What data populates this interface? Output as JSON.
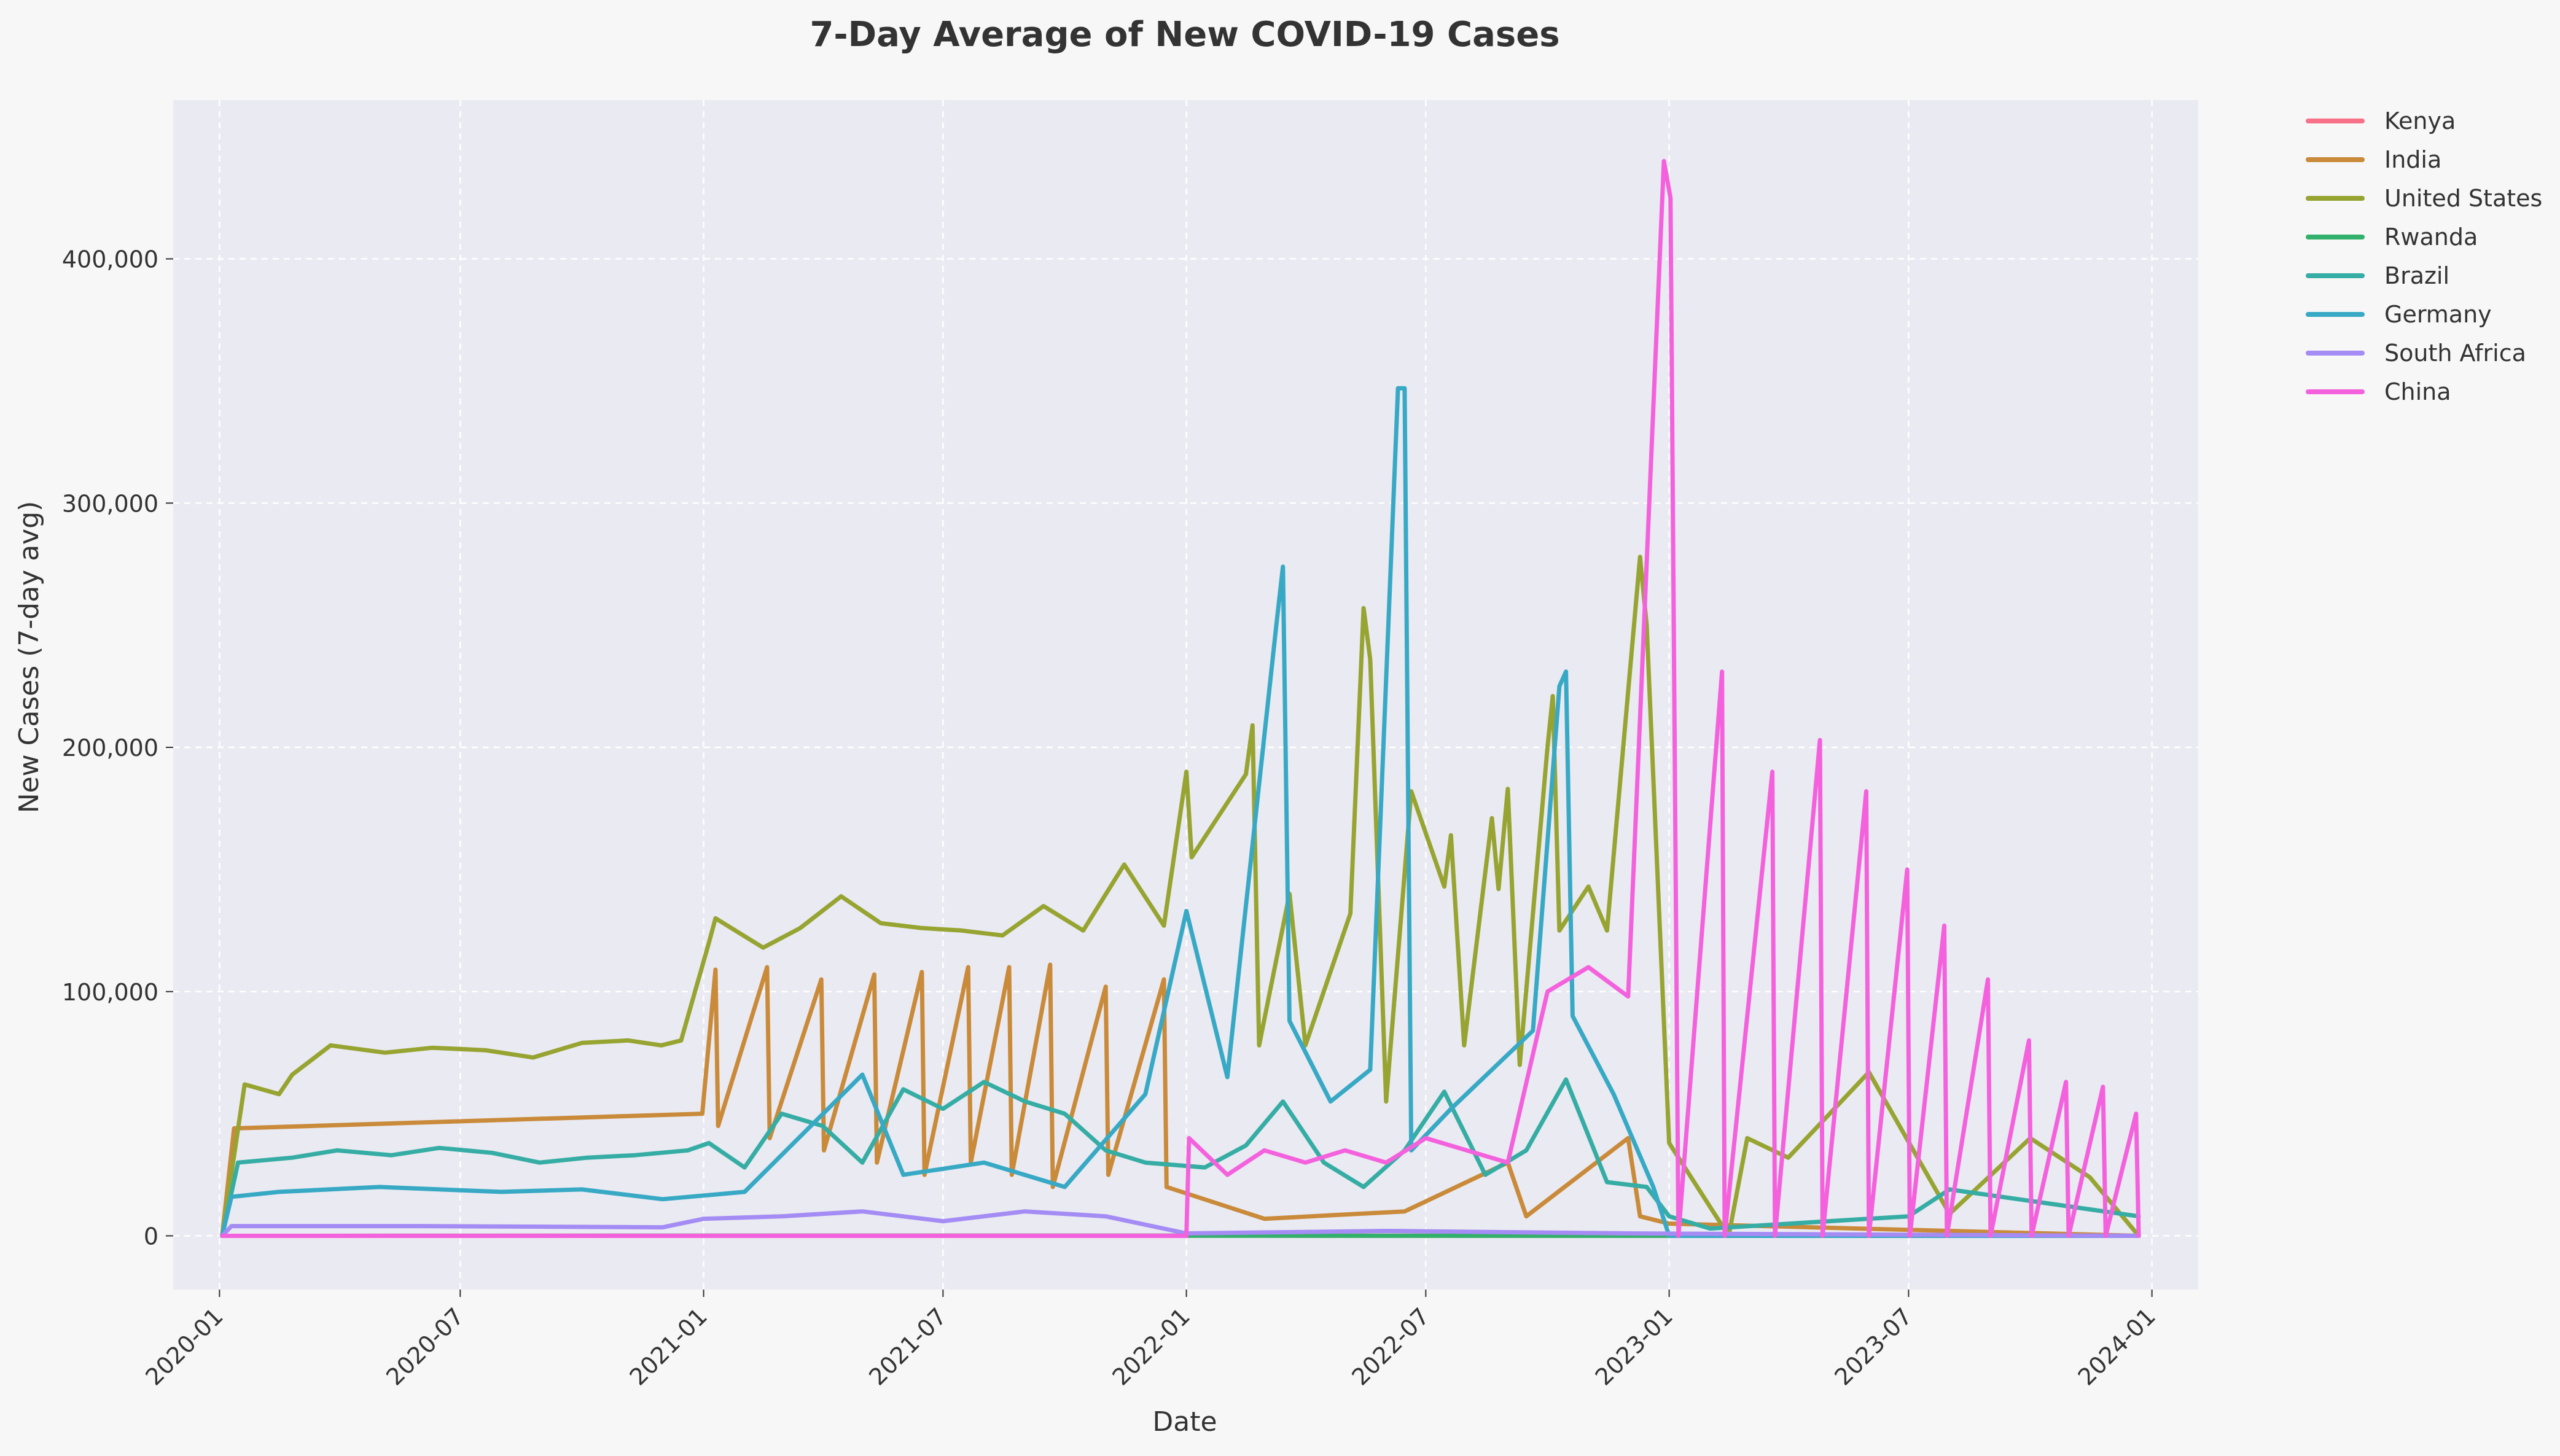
{
  "chart_data": {
    "type": "line",
    "title": "7-Day Average of New COVID-19 Cases",
    "xlabel": "Date",
    "ylabel": "New Cases (7-day avg)",
    "x_range": [
      "2019-11-27",
      "2024-02-05"
    ],
    "ylim": [
      -22000,
      465000
    ],
    "x_ticks": [
      "2020-01-01",
      "2020-07-01",
      "2021-01-01",
      "2021-07-01",
      "2022-01-01",
      "2022-07-01",
      "2023-01-01",
      "2023-07-01",
      "2024-01-01"
    ],
    "x_tick_labels": [
      "2020-01",
      "2020-07",
      "2021-01",
      "2021-07",
      "2022-01",
      "2022-07",
      "2023-01",
      "2023-07",
      "2024-01"
    ],
    "y_ticks": [
      0,
      100000,
      200000,
      300000,
      400000
    ],
    "y_tick_labels": [
      "0",
      "100,000",
      "200,000",
      "300,000",
      "400,000"
    ],
    "grid": true,
    "legend_position": "outside-top-right",
    "colors": {
      "background": "#f7f7f7",
      "plot_background": "#eaeaf2",
      "grid": "#ffffff"
    },
    "series": [
      {
        "name": "Kenya",
        "color": "#f77189",
        "points": [
          [
            "2020-01-03",
            0
          ],
          [
            "2021-06-01",
            100
          ],
          [
            "2022-06-01",
            80
          ],
          [
            "2023-12-22",
            0
          ]
        ]
      },
      {
        "name": "India",
        "color": "#c98a3a",
        "points": [
          [
            "2020-01-03",
            0
          ],
          [
            "2020-01-12",
            44000
          ],
          [
            "2020-12-31",
            50000
          ],
          [
            "2021-01-10",
            109000
          ],
          [
            "2021-01-12",
            45000
          ],
          [
            "2021-02-18",
            110000
          ],
          [
            "2021-02-20",
            40000
          ],
          [
            "2021-03-31",
            105000
          ],
          [
            "2021-04-02",
            35000
          ],
          [
            "2021-05-10",
            107000
          ],
          [
            "2021-05-12",
            30000
          ],
          [
            "2021-06-15",
            108000
          ],
          [
            "2021-06-17",
            25000
          ],
          [
            "2021-07-20",
            110000
          ],
          [
            "2021-07-22",
            30000
          ],
          [
            "2021-08-20",
            110000
          ],
          [
            "2021-08-22",
            25000
          ],
          [
            "2021-09-20",
            111000
          ],
          [
            "2021-09-22",
            20000
          ],
          [
            "2021-11-01",
            102000
          ],
          [
            "2021-11-03",
            25000
          ],
          [
            "2021-12-15",
            105000
          ],
          [
            "2021-12-17",
            20000
          ],
          [
            "2022-03-01",
            7000
          ],
          [
            "2022-06-15",
            10000
          ],
          [
            "2022-09-01",
            30000
          ],
          [
            "2022-09-15",
            8000
          ],
          [
            "2022-12-01",
            40000
          ],
          [
            "2022-12-10",
            8000
          ],
          [
            "2023-01-01",
            5000
          ],
          [
            "2023-12-22",
            0
          ]
        ]
      },
      {
        "name": "United States",
        "color": "#97a431",
        "points": [
          [
            "2020-01-03",
            0
          ],
          [
            "2020-01-20",
            62000
          ],
          [
            "2020-02-15",
            58000
          ],
          [
            "2020-02-25",
            66000
          ],
          [
            "2020-03-25",
            78000
          ],
          [
            "2020-05-05",
            75000
          ],
          [
            "2020-06-10",
            77000
          ],
          [
            "2020-07-20",
            76000
          ],
          [
            "2020-08-25",
            73000
          ],
          [
            "2020-10-01",
            79000
          ],
          [
            "2020-11-05",
            80000
          ],
          [
            "2020-11-30",
            78000
          ],
          [
            "2020-12-15",
            80000
          ],
          [
            "2021-01-05",
            120000
          ],
          [
            "2021-01-10",
            130000
          ],
          [
            "2021-02-15",
            118000
          ],
          [
            "2021-03-15",
            126000
          ],
          [
            "2021-04-15",
            139000
          ],
          [
            "2021-05-15",
            128000
          ],
          [
            "2021-06-15",
            126000
          ],
          [
            "2021-07-15",
            125000
          ],
          [
            "2021-08-15",
            123000
          ],
          [
            "2021-09-15",
            135000
          ],
          [
            "2021-10-15",
            125000
          ],
          [
            "2021-11-15",
            152000
          ],
          [
            "2021-12-15",
            127000
          ],
          [
            "2022-01-01",
            190000
          ],
          [
            "2022-01-05",
            155000
          ],
          [
            "2022-02-15",
            189000
          ],
          [
            "2022-02-20",
            209000
          ],
          [
            "2022-02-25",
            78000
          ],
          [
            "2022-03-20",
            140000
          ],
          [
            "2022-04-01",
            78000
          ],
          [
            "2022-05-05",
            132000
          ],
          [
            "2022-05-15",
            257000
          ],
          [
            "2022-05-20",
            236000
          ],
          [
            "2022-06-01",
            55000
          ],
          [
            "2022-06-20",
            182000
          ],
          [
            "2022-07-15",
            143000
          ],
          [
            "2022-07-20",
            164000
          ],
          [
            "2022-07-30",
            78000
          ],
          [
            "2022-08-20",
            171000
          ],
          [
            "2022-08-25",
            142000
          ],
          [
            "2022-09-01",
            183000
          ],
          [
            "2022-09-10",
            70000
          ],
          [
            "2022-10-01",
            200000
          ],
          [
            "2022-10-05",
            221000
          ],
          [
            "2022-10-10",
            125000
          ],
          [
            "2022-11-01",
            143000
          ],
          [
            "2022-11-15",
            125000
          ],
          [
            "2022-12-10",
            278000
          ],
          [
            "2022-12-15",
            250000
          ],
          [
            "2023-01-01",
            38000
          ],
          [
            "2023-02-15",
            0
          ],
          [
            "2023-03-01",
            40000
          ],
          [
            "2023-04-01",
            32000
          ],
          [
            "2023-06-01",
            67000
          ],
          [
            "2023-08-01",
            9000
          ],
          [
            "2023-10-01",
            40000
          ],
          [
            "2023-11-15",
            24000
          ],
          [
            "2023-12-22",
            0
          ]
        ]
      },
      {
        "name": "Rwanda",
        "color": "#33b06b",
        "points": [
          [
            "2020-01-03",
            0
          ],
          [
            "2021-03-01",
            80
          ],
          [
            "2022-03-01",
            60
          ],
          [
            "2023-12-22",
            0
          ]
        ]
      },
      {
        "name": "Brazil",
        "color": "#36ada4",
        "points": [
          [
            "2020-01-03",
            0
          ],
          [
            "2020-01-15",
            30000
          ],
          [
            "2020-02-25",
            32000
          ],
          [
            "2020-03-30",
            35000
          ],
          [
            "2020-05-10",
            33000
          ],
          [
            "2020-06-15",
            36000
          ],
          [
            "2020-07-25",
            34000
          ],
          [
            "2020-08-30",
            30000
          ],
          [
            "2020-10-05",
            32000
          ],
          [
            "2020-11-10",
            33000
          ],
          [
            "2020-12-20",
            35000
          ],
          [
            "2021-01-05",
            38000
          ],
          [
            "2021-02-01",
            28000
          ],
          [
            "2021-03-01",
            50000
          ],
          [
            "2021-04-01",
            45000
          ],
          [
            "2021-05-01",
            30000
          ],
          [
            "2021-06-01",
            60000
          ],
          [
            "2021-07-01",
            52000
          ],
          [
            "2021-08-01",
            63000
          ],
          [
            "2021-09-01",
            55000
          ],
          [
            "2021-10-01",
            50000
          ],
          [
            "2021-11-01",
            35000
          ],
          [
            "2021-12-01",
            30000
          ],
          [
            "2022-01-15",
            28000
          ],
          [
            "2022-02-15",
            37000
          ],
          [
            "2022-03-15",
            55000
          ],
          [
            "2022-04-15",
            30000
          ],
          [
            "2022-05-15",
            20000
          ],
          [
            "2022-06-15",
            35000
          ],
          [
            "2022-07-15",
            59000
          ],
          [
            "2022-08-15",
            25000
          ],
          [
            "2022-09-15",
            35000
          ],
          [
            "2022-10-15",
            64000
          ],
          [
            "2022-11-15",
            22000
          ],
          [
            "2022-12-15",
            20000
          ],
          [
            "2023-01-01",
            8000
          ],
          [
            "2023-02-01",
            3000
          ],
          [
            "2023-07-01",
            8000
          ],
          [
            "2023-08-01",
            19000
          ],
          [
            "2023-12-22",
            8000
          ]
        ]
      },
      {
        "name": "Germany",
        "color": "#38a9c5",
        "points": [
          [
            "2020-01-03",
            0
          ],
          [
            "2020-01-10",
            16000
          ],
          [
            "2020-02-15",
            18000
          ],
          [
            "2020-05-01",
            20000
          ],
          [
            "2020-08-01",
            18000
          ],
          [
            "2020-10-01",
            19000
          ],
          [
            "2020-12-01",
            15000
          ],
          [
            "2021-02-01",
            18000
          ],
          [
            "2021-05-01",
            66000
          ],
          [
            "2021-06-01",
            25000
          ],
          [
            "2021-08-01",
            30000
          ],
          [
            "2021-10-01",
            20000
          ],
          [
            "2021-12-01",
            58000
          ],
          [
            "2022-01-01",
            133000
          ],
          [
            "2022-02-01",
            65000
          ],
          [
            "2022-03-10",
            250000
          ],
          [
            "2022-03-15",
            274000
          ],
          [
            "2022-03-20",
            88000
          ],
          [
            "2022-04-20",
            55000
          ],
          [
            "2022-05-20",
            68000
          ],
          [
            "2022-06-10",
            347000
          ],
          [
            "2022-06-15",
            347000
          ],
          [
            "2022-06-20",
            35000
          ],
          [
            "2022-07-20",
            52000
          ],
          [
            "2022-08-20",
            68000
          ],
          [
            "2022-09-20",
            84000
          ],
          [
            "2022-10-10",
            225000
          ],
          [
            "2022-10-15",
            231000
          ],
          [
            "2022-10-20",
            90000
          ],
          [
            "2022-11-20",
            58000
          ],
          [
            "2022-12-20",
            20000
          ],
          [
            "2023-01-01",
            0
          ],
          [
            "2023-12-22",
            0
          ]
        ]
      },
      {
        "name": "South Africa",
        "color": "#a48cf4",
        "points": [
          [
            "2020-01-03",
            0
          ],
          [
            "2020-01-10",
            4000
          ],
          [
            "2020-06-01",
            4000
          ],
          [
            "2020-12-01",
            3500
          ],
          [
            "2021-01-01",
            7000
          ],
          [
            "2021-03-01",
            8000
          ],
          [
            "2021-05-01",
            10000
          ],
          [
            "2021-07-01",
            6000
          ],
          [
            "2021-09-01",
            10000
          ],
          [
            "2021-11-01",
            8000
          ],
          [
            "2022-01-01",
            1000
          ],
          [
            "2022-06-01",
            2000
          ],
          [
            "2022-12-01",
            1000
          ],
          [
            "2023-12-22",
            0
          ]
        ]
      },
      {
        "name": "China",
        "color": "#f461dd",
        "points": [
          [
            "2020-01-03",
            0
          ],
          [
            "2022-01-01",
            0
          ],
          [
            "2022-01-03",
            40000
          ],
          [
            "2022-02-01",
            25000
          ],
          [
            "2022-03-01",
            35000
          ],
          [
            "2022-04-01",
            30000
          ],
          [
            "2022-05-01",
            35000
          ],
          [
            "2022-06-01",
            30000
          ],
          [
            "2022-07-01",
            40000
          ],
          [
            "2022-08-01",
            35000
          ],
          [
            "2022-09-01",
            30000
          ],
          [
            "2022-10-01",
            100000
          ],
          [
            "2022-11-01",
            110000
          ],
          [
            "2022-12-01",
            98000
          ],
          [
            "2022-12-28",
            440000
          ],
          [
            "2023-01-02",
            425000
          ],
          [
            "2023-01-08",
            0
          ],
          [
            "2023-02-10",
            231000
          ],
          [
            "2023-02-12",
            0
          ],
          [
            "2023-03-20",
            190000
          ],
          [
            "2023-03-22",
            0
          ],
          [
            "2023-04-25",
            203000
          ],
          [
            "2023-04-27",
            0
          ],
          [
            "2023-05-30",
            182000
          ],
          [
            "2023-06-01",
            0
          ],
          [
            "2023-06-30",
            150000
          ],
          [
            "2023-07-02",
            0
          ],
          [
            "2023-07-28",
            127000
          ],
          [
            "2023-07-30",
            0
          ],
          [
            "2023-08-30",
            105000
          ],
          [
            "2023-09-01",
            0
          ],
          [
            "2023-09-30",
            80000
          ],
          [
            "2023-10-02",
            0
          ],
          [
            "2023-10-28",
            63000
          ],
          [
            "2023-10-30",
            0
          ],
          [
            "2023-11-25",
            61000
          ],
          [
            "2023-11-27",
            0
          ],
          [
            "2023-12-20",
            50000
          ],
          [
            "2023-12-22",
            0
          ]
        ]
      }
    ]
  }
}
